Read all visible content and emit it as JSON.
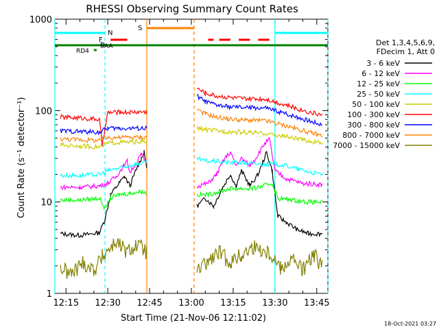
{
  "chart_data": {
    "type": "line",
    "title": "RHESSI Observing Summary Count Rates",
    "xlabel": "Start Time (21-Nov-06 12:11:02)",
    "ylabel": "Count Rate (s⁻¹ detector⁻¹)",
    "y_scale": "log",
    "ylim": [
      1,
      1000
    ],
    "xlim": [
      "12:11",
      "13:49"
    ],
    "y_ticks": [
      "1",
      "10",
      "100",
      "1000"
    ],
    "x_ticks": [
      "12:15",
      "12:30",
      "12:45",
      "13:00",
      "13:15",
      "13:30",
      "13:45"
    ],
    "legend_header": [
      "Det 1,3,4,5,6,9,",
      "FDecim 1, Att 0"
    ],
    "legend_position": "right",
    "footer_date": "18-Oct-2021 03:27",
    "flags": {
      "N": "N",
      "F": "F",
      "S": "S",
      "D": "D",
      "SAA": "SAA",
      "RD4": "RD4"
    },
    "series": [
      {
        "name": "3 - 6 keV",
        "color": "#000000",
        "points": [
          [
            "12:13",
            4.5
          ],
          [
            "12:20",
            4.3
          ],
          [
            "12:27",
            4.6
          ],
          [
            "12:29",
            6.5
          ],
          [
            "12:31",
            12
          ],
          [
            "12:34",
            16
          ],
          [
            "12:36",
            19
          ],
          [
            "12:38",
            15
          ],
          [
            "12:40",
            22
          ],
          [
            "12:42",
            30
          ],
          [
            "12:43",
            35
          ],
          [
            "12:44",
            24
          ],
          [
            "13:02",
            9
          ],
          [
            "13:05",
            11
          ],
          [
            "13:08",
            9
          ],
          [
            "13:11",
            14
          ],
          [
            "13:14",
            20
          ],
          [
            "13:16",
            15
          ],
          [
            "13:18",
            22
          ],
          [
            "13:21",
            15
          ],
          [
            "13:24",
            20
          ],
          [
            "13:27",
            35
          ],
          [
            "13:29",
            22
          ],
          [
            "13:31",
            7
          ],
          [
            "13:34",
            6
          ],
          [
            "13:38",
            5
          ],
          [
            "13:42",
            4.5
          ],
          [
            "13:47",
            4.5
          ]
        ]
      },
      {
        "name": "6 - 12 keV",
        "color": "#ff00ff",
        "points": [
          [
            "12:13",
            14.5
          ],
          [
            "12:20",
            14.5
          ],
          [
            "12:27",
            15
          ],
          [
            "12:30",
            16
          ],
          [
            "12:33",
            19
          ],
          [
            "12:35",
            23
          ],
          [
            "12:37",
            28
          ],
          [
            "12:38",
            21
          ],
          [
            "12:40",
            26
          ],
          [
            "12:42",
            33
          ],
          [
            "12:44",
            27
          ],
          [
            "13:02",
            15
          ],
          [
            "13:06",
            16
          ],
          [
            "13:09",
            20
          ],
          [
            "13:12",
            30
          ],
          [
            "13:14",
            35
          ],
          [
            "13:16",
            25
          ],
          [
            "13:18",
            30
          ],
          [
            "13:21",
            25
          ],
          [
            "13:23",
            30
          ],
          [
            "13:26",
            42
          ],
          [
            "13:28",
            49
          ],
          [
            "13:30",
            22
          ],
          [
            "13:34",
            18
          ],
          [
            "13:40",
            16
          ],
          [
            "13:47",
            15.5
          ]
        ]
      },
      {
        "name": "12 - 25 keV",
        "color": "#00ff00",
        "points": [
          [
            "12:13",
            10.5
          ],
          [
            "12:20",
            10.5
          ],
          [
            "12:27",
            11
          ],
          [
            "12:29",
            8.5
          ],
          [
            "12:31",
            11
          ],
          [
            "12:34",
            12
          ],
          [
            "12:38",
            12.5
          ],
          [
            "12:42",
            13
          ],
          [
            "12:44",
            12.5
          ],
          [
            "13:02",
            12
          ],
          [
            "13:06",
            12
          ],
          [
            "13:10",
            13
          ],
          [
            "13:14",
            14
          ],
          [
            "13:18",
            14
          ],
          [
            "13:22",
            14
          ],
          [
            "13:26",
            15
          ],
          [
            "13:29",
            16
          ],
          [
            "13:31",
            11
          ],
          [
            "13:36",
            10.5
          ],
          [
            "13:42",
            10
          ],
          [
            "13:47",
            10
          ]
        ]
      },
      {
        "name": "25 - 50 keV",
        "color": "#00ffff",
        "points": [
          [
            "12:13",
            19.5
          ],
          [
            "12:20",
            19.5
          ],
          [
            "12:27",
            20
          ],
          [
            "12:30",
            22
          ],
          [
            "12:33",
            23
          ],
          [
            "12:36",
            24
          ],
          [
            "12:40",
            26
          ],
          [
            "12:44",
            27
          ],
          [
            "13:02",
            30
          ],
          [
            "13:05",
            28
          ],
          [
            "13:09",
            28
          ],
          [
            "13:13",
            27
          ],
          [
            "13:18",
            27
          ],
          [
            "13:23",
            26
          ],
          [
            "13:27",
            26
          ],
          [
            "13:30",
            26
          ],
          [
            "13:34",
            25
          ],
          [
            "13:38",
            23
          ],
          [
            "13:43",
            21
          ],
          [
            "13:47",
            20
          ]
        ]
      },
      {
        "name": "50 - 100 keV",
        "color": "#cccc00",
        "points": [
          [
            "12:13",
            42
          ],
          [
            "12:20",
            41
          ],
          [
            "12:27",
            40
          ],
          [
            "12:30",
            44
          ],
          [
            "12:34",
            45
          ],
          [
            "12:38",
            45
          ],
          [
            "12:42",
            46
          ],
          [
            "12:44",
            45
          ],
          [
            "13:02",
            64
          ],
          [
            "13:05",
            62
          ],
          [
            "13:09",
            60
          ],
          [
            "13:13",
            59
          ],
          [
            "13:18",
            58
          ],
          [
            "13:23",
            57
          ],
          [
            "13:27",
            56
          ],
          [
            "13:30",
            54
          ],
          [
            "13:34",
            52
          ],
          [
            "13:38",
            49
          ],
          [
            "13:43",
            46
          ],
          [
            "13:47",
            44
          ]
        ]
      },
      {
        "name": "100 - 300 keV",
        "color": "#ff0000",
        "points": [
          [
            "12:13",
            85
          ],
          [
            "12:20",
            83
          ],
          [
            "12:27",
            80
          ],
          [
            "12:28",
            42
          ],
          [
            "12:30",
            95
          ],
          [
            "12:34",
            96
          ],
          [
            "12:38",
            96
          ],
          [
            "12:42",
            97
          ],
          [
            "12:44",
            96
          ],
          [
            "13:02",
            175
          ],
          [
            "13:05",
            155
          ],
          [
            "13:09",
            145
          ],
          [
            "13:13",
            140
          ],
          [
            "13:18",
            135
          ],
          [
            "13:23",
            134
          ],
          [
            "13:27",
            134
          ],
          [
            "13:30",
            125
          ],
          [
            "13:34",
            115
          ],
          [
            "13:38",
            105
          ],
          [
            "13:43",
            95
          ],
          [
            "13:47",
            90
          ]
        ]
      },
      {
        "name": "300 - 800 keV",
        "color": "#0000ff",
        "points": [
          [
            "12:13",
            60
          ],
          [
            "12:20",
            59
          ],
          [
            "12:27",
            58
          ],
          [
            "12:30",
            64
          ],
          [
            "12:34",
            64
          ],
          [
            "12:38",
            64
          ],
          [
            "12:42",
            64
          ],
          [
            "12:44",
            64
          ],
          [
            "13:02",
            145
          ],
          [
            "13:05",
            125
          ],
          [
            "13:09",
            115
          ],
          [
            "13:13",
            110
          ],
          [
            "13:18",
            108
          ],
          [
            "13:23",
            107
          ],
          [
            "13:27",
            106
          ],
          [
            "13:30",
            100
          ],
          [
            "13:34",
            92
          ],
          [
            "13:38",
            85
          ],
          [
            "13:43",
            76
          ],
          [
            "13:47",
            70
          ]
        ]
      },
      {
        "name": "800 - 7000 keV",
        "color": "#ff8000",
        "points": [
          [
            "12:13",
            49
          ],
          [
            "12:20",
            48
          ],
          [
            "12:27",
            47
          ],
          [
            "12:30",
            51
          ],
          [
            "12:34",
            51
          ],
          [
            "12:38",
            51
          ],
          [
            "12:42",
            51
          ],
          [
            "12:44",
            51
          ],
          [
            "13:02",
            105
          ],
          [
            "13:05",
            92
          ],
          [
            "13:09",
            85
          ],
          [
            "13:13",
            81
          ],
          [
            "13:18",
            79
          ],
          [
            "13:23",
            78
          ],
          [
            "13:27",
            77
          ],
          [
            "13:30",
            73
          ],
          [
            "13:34",
            68
          ],
          [
            "13:38",
            63
          ],
          [
            "13:43",
            57
          ],
          [
            "13:47",
            53
          ]
        ]
      },
      {
        "name": "7000 - 15000 keV",
        "color": "#808000",
        "points": [
          [
            "12:13",
            1.9
          ],
          [
            "12:17",
            1.6
          ],
          [
            "12:21",
            2.2
          ],
          [
            "12:25",
            1.8
          ],
          [
            "12:28",
            2.5
          ],
          [
            "12:30",
            3.0
          ],
          [
            "12:33",
            3.6
          ],
          [
            "12:37",
            2.8
          ],
          [
            "12:40",
            3.4
          ],
          [
            "12:43",
            3.0
          ],
          [
            "12:44",
            2.8
          ],
          [
            "13:02",
            1.7
          ],
          [
            "13:06",
            2.2
          ],
          [
            "13:10",
            2.8
          ],
          [
            "13:14",
            2.2
          ],
          [
            "13:18",
            2.6
          ],
          [
            "13:22",
            3.2
          ],
          [
            "13:26",
            3.0
          ],
          [
            "13:29",
            2.6
          ],
          [
            "13:32",
            1.9
          ],
          [
            "13:36",
            2.4
          ],
          [
            "13:40",
            1.8
          ],
          [
            "13:44",
            2.6
          ],
          [
            "13:47",
            2.0
          ]
        ]
      }
    ],
    "attenuator_segments": {
      "name": "S",
      "color": "#ff8000",
      "intervals": [
        [
          "12:44",
          "13:01"
        ]
      ]
    },
    "flag_bars": [
      {
        "label": "N",
        "color": "#00ffff",
        "intervals": [
          [
            "12:11",
            "12:29"
          ],
          [
            "13:30",
            "13:49"
          ]
        ]
      },
      {
        "label": "F",
        "color": "#ff0000",
        "intervals": [
          [
            "12:31",
            "12:37"
          ],
          [
            "13:06",
            "13:08"
          ],
          [
            "13:10",
            "13:14"
          ],
          [
            "13:17",
            "13:21"
          ],
          [
            "13:24",
            "13:28"
          ]
        ]
      },
      {
        "label": "SAA",
        "color": "#008000",
        "intervals": [
          [
            "12:11",
            "13:49"
          ]
        ]
      },
      {
        "label": "RD4",
        "color": "#008000",
        "intervals": [
          [
            "12:25",
            "12:26"
          ]
        ]
      }
    ],
    "vertical_markers": [
      {
        "time": "12:11",
        "color": "#00ffff",
        "style": "solid"
      },
      {
        "time": "12:29",
        "color": "#00ffff",
        "style": "dashed"
      },
      {
        "time": "12:44",
        "color": "#ff8000",
        "style": "solid"
      },
      {
        "time": "13:01",
        "color": "#ff8000",
        "style": "dashed"
      },
      {
        "time": "13:30",
        "color": "#00ffff",
        "style": "solid"
      },
      {
        "time": "13:49",
        "color": "#00ffff",
        "style": "dashed"
      }
    ]
  }
}
